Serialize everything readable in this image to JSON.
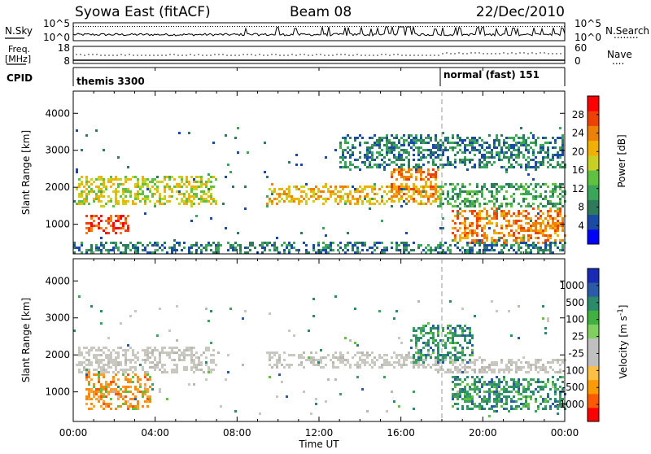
{
  "header": {
    "station": "Syowa East (fitACF)",
    "beam": "Beam 08",
    "date": "22/Dec/2010"
  },
  "nsky": {
    "label": "N.Sky",
    "yticks": [
      "10^5",
      "10^0"
    ],
    "right_label": "N.Search",
    "right_yticks": [
      "10^5",
      "10^0"
    ],
    "dots": "........"
  },
  "freq": {
    "label_1": "Freq.",
    "label_2": "[MHz]",
    "yticks": [
      "18",
      "8"
    ],
    "right_label": "Nave",
    "right_yticks": [
      "60",
      "0"
    ],
    "dots": "...."
  },
  "cpid": {
    "label": "CPID",
    "segments": [
      {
        "name": "themis 3300",
        "start_hour": 0
      },
      {
        "name": "normal (fast) 151",
        "start_hour": 18
      }
    ]
  },
  "time_axis": {
    "label": "Time UT",
    "tick_labels": [
      "00:00",
      "04:00",
      "08:00",
      "12:00",
      "16:00",
      "20:00",
      "00:00"
    ],
    "range_hours": [
      0,
      24
    ],
    "major_step_hours": 4,
    "dashed_marker_hour": 18
  },
  "power_panel": {
    "ylabel": "Slant Range [km]",
    "ylim": [
      200,
      4600
    ],
    "yticks": [
      "1000",
      "2000",
      "3000",
      "4000"
    ],
    "colorbar_label": "Power [dB]",
    "colorbar_ticks": [
      "28",
      "24",
      "20",
      "16",
      "12",
      "8",
      "4"
    ],
    "colorbar_colors": [
      "#0000ff",
      "#1a4aa8",
      "#2e7a5a",
      "#3aa65a",
      "#60c040",
      "#c8d020",
      "#f0b000",
      "#f08000",
      "#f04000",
      "#ff0000"
    ]
  },
  "velocity_panel": {
    "ylabel": "Slant Range [km]",
    "ylim": [
      200,
      4600
    ],
    "yticks": [
      "1000",
      "2000",
      "3000",
      "4000"
    ],
    "colorbar_label": "Velocity [m s^-1]",
    "colorbar_ticks": [
      "1000",
      "500",
      "100",
      "25",
      "-25",
      "-100",
      "-500",
      "-1000"
    ],
    "colorbar_colors": [
      "#ff0000",
      "#ff5a00",
      "#ff9a00",
      "#ffc040",
      "#c0c0c0",
      "#c0c0c0",
      "#80d060",
      "#40b040",
      "#2a8a6a",
      "#2a5aa8",
      "#1a2ab8"
    ]
  },
  "chart_data": {
    "type": "heatmap",
    "x_unit": "hours UT",
    "y_unit": "km",
    "power_features": [
      {
        "t0": 0.2,
        "t1": 7.0,
        "r0": 1500,
        "r1": 2300,
        "level": 16
      },
      {
        "t0": 0.6,
        "t1": 2.7,
        "r0": 750,
        "r1": 1250,
        "level": 24
      },
      {
        "t0": 0.0,
        "t1": 24.0,
        "r0": 220,
        "r1": 520,
        "level": 6
      },
      {
        "t0": 9.5,
        "t1": 18.0,
        "r0": 1550,
        "r1": 2050,
        "level": 18
      },
      {
        "t0": 15.5,
        "t1": 17.8,
        "r0": 1700,
        "r1": 2500,
        "level": 22
      },
      {
        "t0": 13.0,
        "t1": 24.0,
        "r0": 2500,
        "r1": 3400,
        "level": 6
      },
      {
        "t0": 17.8,
        "t1": 24.0,
        "r0": 1450,
        "r1": 2100,
        "level": 10
      },
      {
        "t0": 18.5,
        "t1": 24.0,
        "r0": 500,
        "r1": 1400,
        "level": 20
      }
    ],
    "velocity_features": [
      {
        "t0": 0.2,
        "t1": 7.0,
        "r0": 1500,
        "r1": 2200,
        "v": 0
      },
      {
        "t0": 0.6,
        "t1": 3.8,
        "r0": 550,
        "r1": 1500,
        "v": -300
      },
      {
        "t0": 9.5,
        "t1": 17.5,
        "r0": 1650,
        "r1": 2050,
        "v": 0
      },
      {
        "t0": 17.5,
        "t1": 24.0,
        "r0": 1500,
        "r1": 1900,
        "v": 0
      },
      {
        "t0": 16.5,
        "t1": 19.5,
        "r0": 1800,
        "r1": 2800,
        "v": 150
      },
      {
        "t0": 18.5,
        "t1": 24.0,
        "r0": 500,
        "r1": 1400,
        "v": 300
      }
    ]
  }
}
